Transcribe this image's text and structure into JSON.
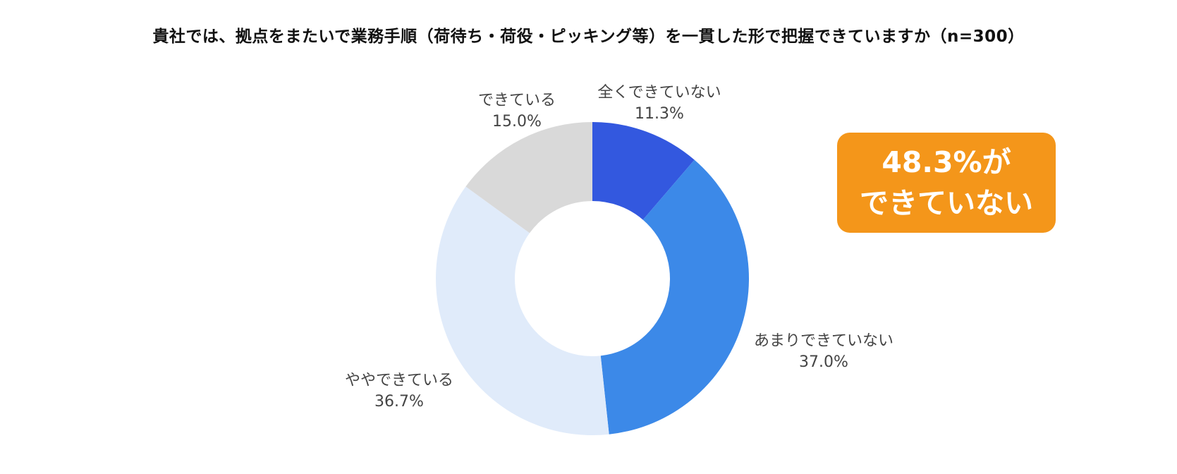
{
  "chart_data": {
    "type": "pie",
    "title": "貴社では、拠点をまたいで業務手順（荷待ち・荷役・ピッキング等）を一貫した形で把握できていますか（n=300）",
    "categories": [
      "全くできていない",
      "あまりできていない",
      "ややできている",
      "できている"
    ],
    "values": [
      11.3,
      37.0,
      36.7,
      15.0
    ],
    "value_labels": [
      "11.3%",
      "37.0%",
      "36.7%",
      "15.0%"
    ],
    "colors": [
      "#3358df",
      "#3c89e8",
      "#e0ebfa",
      "#d9d9d9"
    ],
    "donut": true,
    "start_angle": "12 o'clock",
    "direction": "clockwise",
    "legend": "none"
  },
  "callout": {
    "line1": "48.3%が",
    "line2": "できていない",
    "color": "#f4961a"
  }
}
